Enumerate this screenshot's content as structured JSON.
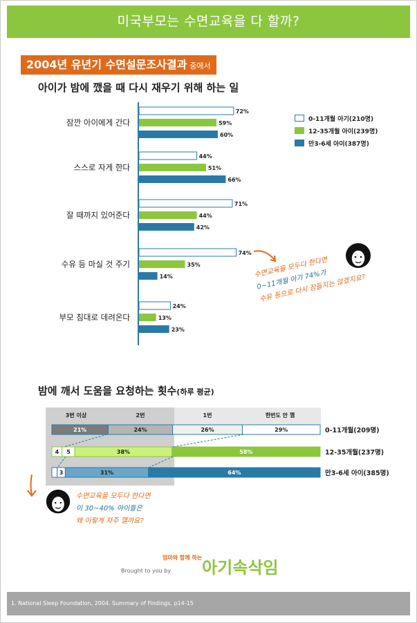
{
  "banner": {
    "title": "미국부모는 수면교육을 다 할까?"
  },
  "section1": {
    "tag": "2004년 유년기 수면설문조사결과",
    "tag_suffix": "중에서",
    "title": "아이가 밤에 깼을 때 다시 재우기 위해 하는 일"
  },
  "section2": {
    "title": "밤에 깨서 도움을 요청하는 횟수",
    "title_suffix": "(하루 평균)"
  },
  "note1": {
    "line1": "수면교육을 모두다 한다면",
    "line2": "0~11개월 아기 74%가",
    "line3": "수유 등으로 다시 잠들지는 않겠지요?"
  },
  "note2": {
    "line1": "수면교육을 모두다 한다면",
    "line2": "이 30~40% 아이들은",
    "line3": "왜 이렇게 자주 깰까요?"
  },
  "brought": "Brought to you by",
  "logo": {
    "sub": "엄마와 함께 하는",
    "text": "아기속삭임"
  },
  "footer": "1. National Sleep Foundation, 2004. Summary of Findings, p14-15",
  "colors": {
    "green": "#8cc63f",
    "blue": "#2a7aa8",
    "orange": "#e06a1b",
    "white_bar_stroke": "#2a7aa8"
  },
  "chart_data": [
    {
      "type": "bar",
      "orientation": "horizontal",
      "title": "아이가 밤에 깼을 때 다시 재우기 위해 하는 일",
      "categories": [
        "잠깐 아이에게 간다",
        "스스로 자게 한다",
        "잘 때까지 있어준다",
        "수유 등 마실 것 주기",
        "부모 침대로 데려온다"
      ],
      "series": [
        {
          "name": "0-11개월 아기(210명)",
          "values": [
            72,
            44,
            71,
            74,
            24
          ],
          "labels": [
            "72%",
            "44%",
            "71%",
            "74%",
            "24%"
          ]
        },
        {
          "name": "12-35개월 아이(239명)",
          "values": [
            59,
            51,
            44,
            35,
            13
          ],
          "labels": [
            "59%",
            "51%",
            "44%",
            "35%",
            "13%"
          ]
        },
        {
          "name": "만3-6세 아이(387명)",
          "values": [
            60,
            66,
            42,
            14,
            23
          ],
          "labels": [
            "60%",
            "66%",
            "42%",
            "14%",
            "23%"
          ]
        }
      ],
      "legend": "right"
    },
    {
      "type": "bar",
      "orientation": "horizontal",
      "stacked": true,
      "title": "밤에 깨서 도움을 요청하는 횟수(하루 평균)",
      "segment_headers": [
        "3번 이상",
        "2번",
        "1번",
        "한번도 안 깸"
      ],
      "rows": [
        {
          "name": "0-11개월(209명)",
          "values": [
            21,
            24,
            26,
            29
          ],
          "labels": [
            "21%",
            "24%",
            "26%",
            "29%"
          ]
        },
        {
          "name": "12-35개월(237명)",
          "values": [
            4,
            5,
            38,
            58
          ],
          "labels": [
            "4",
            "5",
            "38%",
            "58%"
          ]
        },
        {
          "name": "만3-6세 아이(385명)",
          "values": [
            2,
            3,
            31,
            64
          ],
          "labels": [
            "",
            "3",
            "31%",
            "64%"
          ]
        }
      ]
    }
  ]
}
